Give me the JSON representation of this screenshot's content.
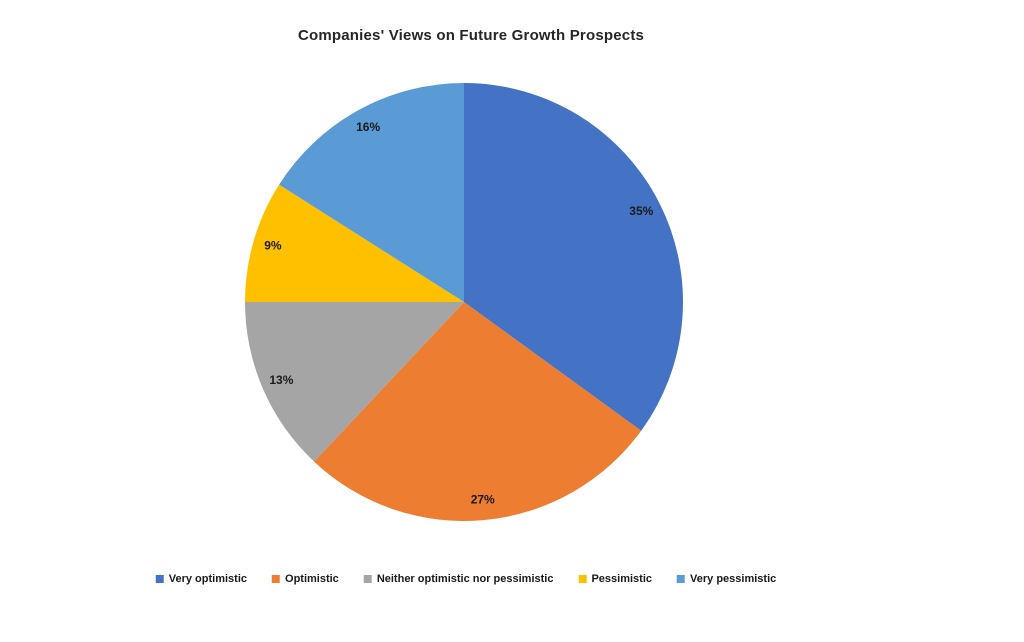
{
  "page": {
    "background_color": "#FFFFFF"
  },
  "chart_data": {
    "type": "pie",
    "title": "Companies' Views on Future Growth Prospects",
    "title_color": "#262626",
    "categories": [
      "Very optimistic",
      "Optimistic",
      "Neither optimistic nor pessimistic",
      "Pessimistic",
      "Very pessimistic"
    ],
    "values": [
      35,
      27,
      13,
      9,
      16
    ],
    "data_labels": [
      "35%",
      "27%",
      "13%",
      "9%",
      "16%"
    ],
    "colors": [
      "#4472C4",
      "#ED7D31",
      "#A5A5A5",
      "#FFC000",
      "#5B9BD5"
    ],
    "data_label_color": "#1A1A1A",
    "start_angle_deg": 0,
    "direction": "clockwise",
    "legend_position": "bottom",
    "grid": false
  }
}
